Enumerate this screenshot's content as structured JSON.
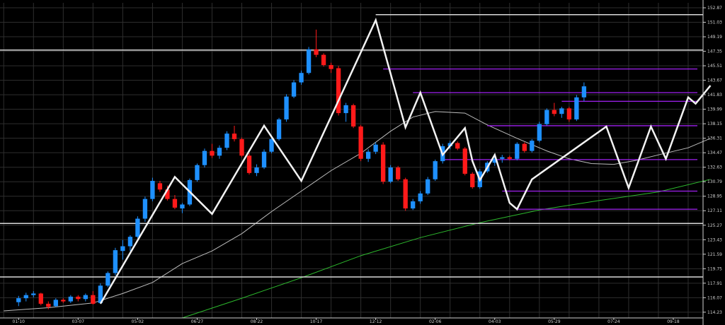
{
  "chart_data": {
    "type": "candlestick",
    "title": "",
    "xlabel": "",
    "ylabel": "",
    "grid": true,
    "colors": {
      "background": "#000000",
      "grid": "#2e2e2e",
      "up_candle": "#1e90ff",
      "down_candle": "#ff1a1a",
      "zigzag": "#f2f2f2",
      "horizontal_levels": "#a020f0",
      "boundary_lines": "#d9d9d9",
      "ma_fast": "#bdbdbd",
      "ma_slow": "#2db82d",
      "axis_text": "#cfcfcf"
    },
    "ylim": [
      113.5,
      153.5
    ],
    "y_ticks": [
      "152.87",
      "151.03",
      "149.19",
      "147.35",
      "145.51",
      "143.67",
      "141.83",
      "139.99",
      "138.15",
      "136.31",
      "134.47",
      "132.63",
      "130.79",
      "128.95",
      "127.11",
      "125.27",
      "123.43",
      "121.59",
      "119.75",
      "117.91",
      "116.07",
      "114.23"
    ],
    "x_ticks": [
      "01-10",
      "03-07",
      "05-02",
      "06-27",
      "08-22",
      "10-17",
      "12-12",
      "02-06",
      "04-03",
      "05-29",
      "07-24",
      "09-18"
    ],
    "x_tick_index": [
      0,
      8,
      16,
      24,
      32,
      40,
      48,
      56,
      64,
      72,
      80,
      88
    ],
    "x_range": [
      -2.5,
      92
    ],
    "candles": [
      [
        115.5,
        116.3,
        115.0,
        116.0
      ],
      [
        116.0,
        116.7,
        115.6,
        116.4
      ],
      [
        116.4,
        116.9,
        116.1,
        116.6
      ],
      [
        116.6,
        116.7,
        115.1,
        115.3
      ],
      [
        115.3,
        115.6,
        114.6,
        114.9
      ],
      [
        115.0,
        116.0,
        114.9,
        115.8
      ],
      [
        115.8,
        116.0,
        115.4,
        115.6
      ],
      [
        115.6,
        116.4,
        115.4,
        116.2
      ],
      [
        116.2,
        116.4,
        115.6,
        115.9
      ],
      [
        115.9,
        116.6,
        115.6,
        116.4
      ],
      [
        116.4,
        116.9,
        115.2,
        115.3
      ],
      [
        115.4,
        117.9,
        115.3,
        117.6
      ],
      [
        117.6,
        119.4,
        117.4,
        119.2
      ],
      [
        119.2,
        122.4,
        118.9,
        122.1
      ],
      [
        122.0,
        123.4,
        120.9,
        122.6
      ],
      [
        122.6,
        124.0,
        122.0,
        123.8
      ],
      [
        123.8,
        126.4,
        123.6,
        126.1
      ],
      [
        126.1,
        128.9,
        125.7,
        128.6
      ],
      [
        128.6,
        131.3,
        128.3,
        130.9
      ],
      [
        130.6,
        130.9,
        129.5,
        129.8
      ],
      [
        129.8,
        130.3,
        128.4,
        128.6
      ],
      [
        128.6,
        129.1,
        127.3,
        127.5
      ],
      [
        127.4,
        128.1,
        126.8,
        127.9
      ],
      [
        127.9,
        131.2,
        127.7,
        131.0
      ],
      [
        131.0,
        133.1,
        130.8,
        132.9
      ],
      [
        132.9,
        135.0,
        132.6,
        134.7
      ],
      [
        134.7,
        135.6,
        133.8,
        134.1
      ],
      [
        134.1,
        135.4,
        133.7,
        135.1
      ],
      [
        135.1,
        137.2,
        134.8,
        136.9
      ],
      [
        136.9,
        137.9,
        135.9,
        136.2
      ],
      [
        136.2,
        136.4,
        133.9,
        134.1
      ],
      [
        134.1,
        134.4,
        131.7,
        131.9
      ],
      [
        131.9,
        133.0,
        131.5,
        132.6
      ],
      [
        132.6,
        134.9,
        132.4,
        134.6
      ],
      [
        134.6,
        136.5,
        134.4,
        136.2
      ],
      [
        136.2,
        138.9,
        136.0,
        138.7
      ],
      [
        138.7,
        141.9,
        138.4,
        141.6
      ],
      [
        141.6,
        143.7,
        141.4,
        143.4
      ],
      [
        143.4,
        144.9,
        143.1,
        144.6
      ],
      [
        144.6,
        147.9,
        144.4,
        147.6
      ],
      [
        147.6,
        150.1,
        146.6,
        146.9
      ],
      [
        146.9,
        147.1,
        145.4,
        145.6
      ],
      [
        145.6,
        145.9,
        144.6,
        145.1
      ],
      [
        145.2,
        145.5,
        139.2,
        139.5
      ],
      [
        139.5,
        140.8,
        138.4,
        140.5
      ],
      [
        140.5,
        140.7,
        137.6,
        137.8
      ],
      [
        137.8,
        138.0,
        133.4,
        133.7
      ],
      [
        133.7,
        134.9,
        133.3,
        134.6
      ],
      [
        134.6,
        135.8,
        134.3,
        135.5
      ],
      [
        135.5,
        135.8,
        130.5,
        130.8
      ],
      [
        130.8,
        132.9,
        130.6,
        132.6
      ],
      [
        132.6,
        132.8,
        130.9,
        131.1
      ],
      [
        131.1,
        131.3,
        127.1,
        127.4
      ],
      [
        127.4,
        128.6,
        127.2,
        128.3
      ],
      [
        128.3,
        129.6,
        128.0,
        129.3
      ],
      [
        129.3,
        131.4,
        129.1,
        131.1
      ],
      [
        131.1,
        133.6,
        130.9,
        133.4
      ],
      [
        133.4,
        135.6,
        133.1,
        135.3
      ],
      [
        135.3,
        136.0,
        134.9,
        135.7
      ],
      [
        135.7,
        135.9,
        134.8,
        135.0
      ],
      [
        135.0,
        135.2,
        131.6,
        131.8
      ],
      [
        131.8,
        132.0,
        129.9,
        130.1
      ],
      [
        130.1,
        132.4,
        129.9,
        132.1
      ],
      [
        132.1,
        133.4,
        131.9,
        133.2
      ],
      [
        133.2,
        134.0,
        132.8,
        133.7
      ],
      [
        133.7,
        134.2,
        133.2,
        133.9
      ],
      [
        133.9,
        134.1,
        133.5,
        133.7
      ],
      [
        133.7,
        135.8,
        133.5,
        135.6
      ],
      [
        135.6,
        135.8,
        134.5,
        134.7
      ],
      [
        134.7,
        136.2,
        134.5,
        136.0
      ],
      [
        136.0,
        138.4,
        135.8,
        138.1
      ],
      [
        138.1,
        140.1,
        137.9,
        139.9
      ],
      [
        139.9,
        140.8,
        139.1,
        139.4
      ],
      [
        139.4,
        140.3,
        138.9,
        140.1
      ],
      [
        140.1,
        140.3,
        138.4,
        138.7
      ],
      [
        138.7,
        141.8,
        138.5,
        141.5
      ],
      [
        141.5,
        143.4,
        141.0,
        142.9
      ]
    ],
    "zigzag": [
      [
        11,
        115.3
      ],
      [
        21,
        131.4
      ],
      [
        26,
        126.7
      ],
      [
        33,
        137.9
      ],
      [
        38,
        130.9
      ],
      [
        48,
        151.3
      ],
      [
        52,
        137.7
      ],
      [
        54,
        142.1
      ],
      [
        57,
        134.2
      ],
      [
        60,
        137.6
      ],
      [
        61,
        133.4
      ],
      [
        62,
        131.0
      ],
      [
        64,
        134.2
      ],
      [
        66,
        128.1
      ],
      [
        67,
        127.3
      ],
      [
        69,
        131.1
      ],
      [
        79,
        137.8
      ],
      [
        82,
        130.0
      ],
      [
        85,
        137.8
      ],
      [
        87,
        133.7
      ],
      [
        90,
        141.5
      ],
      [
        91,
        140.7
      ],
      [
        93,
        143.0
      ]
    ],
    "horizontal_levels": [
      {
        "value": 145.1,
        "from": 49
      },
      {
        "value": 142.1,
        "from": 53
      },
      {
        "value": 141.0,
        "from": 73
      },
      {
        "value": 137.9,
        "from": 63
      },
      {
        "value": 133.6,
        "from": 57
      },
      {
        "value": 129.6,
        "from": 65
      },
      {
        "value": 127.3,
        "from": 67
      }
    ],
    "boundary_levels": [
      {
        "value": 152.0,
        "from": 48
      },
      {
        "value": 147.5,
        "from": -3
      },
      {
        "value": 125.5,
        "from": -3
      },
      {
        "value": 118.7,
        "from": -3
      }
    ],
    "ma_fast": [
      [
        -2,
        114.4
      ],
      [
        4,
        114.8
      ],
      [
        10,
        115.4
      ],
      [
        14,
        116.6
      ],
      [
        18,
        118.0
      ],
      [
        22,
        120.4
      ],
      [
        26,
        122.0
      ],
      [
        30,
        124.2
      ],
      [
        34,
        127.0
      ],
      [
        38,
        129.6
      ],
      [
        42,
        132.2
      ],
      [
        46,
        134.4
      ],
      [
        50,
        137.2
      ],
      [
        53,
        139.0
      ],
      [
        56,
        139.7
      ],
      [
        60,
        139.5
      ],
      [
        63,
        138.0
      ],
      [
        67,
        136.3
      ],
      [
        71,
        134.7
      ],
      [
        74,
        133.7
      ],
      [
        77,
        133.1
      ],
      [
        80,
        133.0
      ],
      [
        83,
        133.5
      ],
      [
        86,
        134.2
      ],
      [
        90,
        135.1
      ],
      [
        93,
        136.3
      ]
    ],
    "ma_slow": [
      [
        22,
        113.5
      ],
      [
        30,
        116.0
      ],
      [
        38,
        118.6
      ],
      [
        46,
        121.4
      ],
      [
        54,
        123.7
      ],
      [
        62,
        125.6
      ],
      [
        70,
        127.2
      ],
      [
        78,
        128.4
      ],
      [
        86,
        129.5
      ],
      [
        93,
        131.1
      ]
    ]
  }
}
